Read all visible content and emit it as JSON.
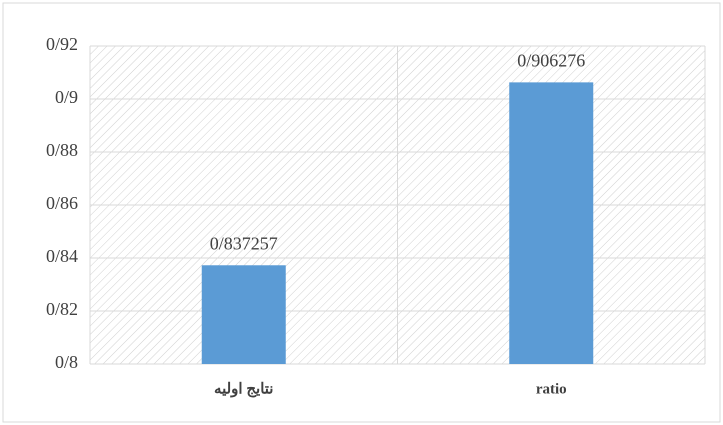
{
  "chart_data": {
    "type": "bar",
    "categories": [
      "نتایج اولیه",
      "ratio"
    ],
    "values": [
      0.837257,
      0.906276
    ],
    "value_labels": [
      "0/837257",
      "0/906276"
    ],
    "color": "#5b9bd5",
    "ylim": [
      0.8,
      0.92
    ],
    "yticks": [
      {
        "value": 0.8,
        "label": "0/8"
      },
      {
        "value": 0.82,
        "label": "0/82"
      },
      {
        "value": 0.84,
        "label": "0/84"
      },
      {
        "value": 0.86,
        "label": "0/86"
      },
      {
        "value": 0.88,
        "label": "0/88"
      },
      {
        "value": 0.9,
        "label": "0/9"
      },
      {
        "value": 0.92,
        "label": "0/92"
      }
    ],
    "grid": true
  }
}
